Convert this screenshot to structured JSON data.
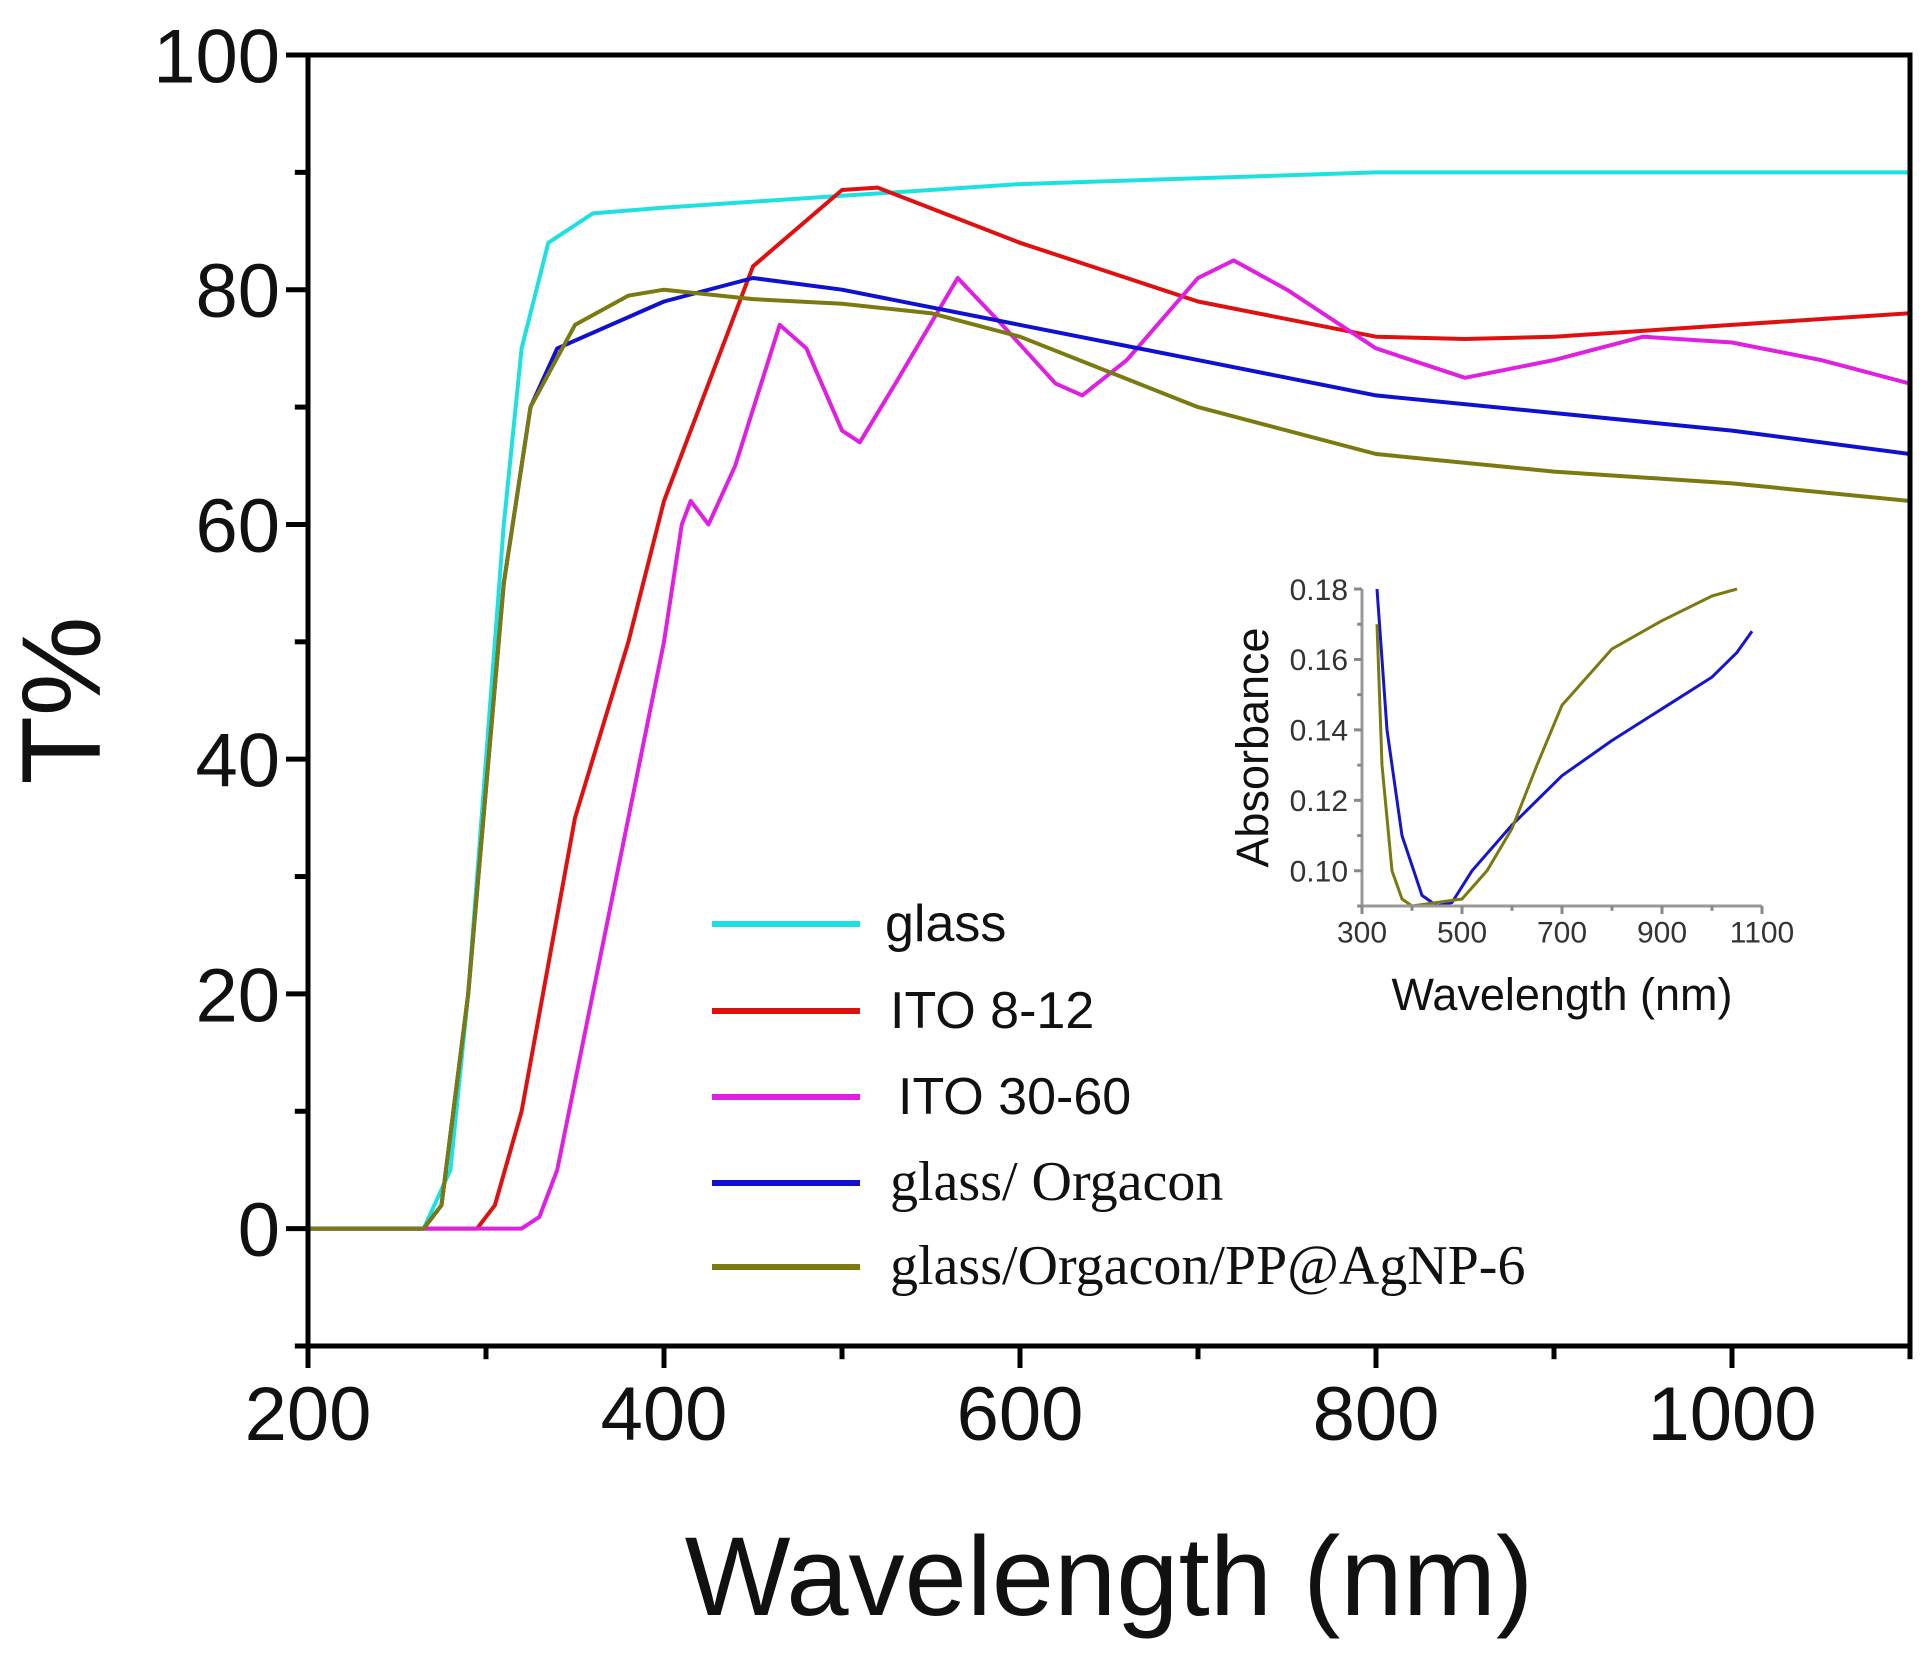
{
  "chart_data": [
    {
      "type": "line",
      "title": "",
      "xlabel": "Wavelength (nm)",
      "ylabel": "T%",
      "xlim": [
        200,
        1100
      ],
      "ylim": [
        -10,
        100
      ],
      "xticks": [
        "200",
        "400",
        "600",
        "800",
        "1000"
      ],
      "yticks": [
        "0",
        "20",
        "40",
        "60",
        "80",
        "100"
      ],
      "grid": false,
      "legend_position": "bottom-center",
      "series": [
        {
          "name": "glass",
          "color": "#1fe0e0",
          "x": [
            200,
            265,
            280,
            290,
            300,
            310,
            320,
            335,
            360,
            400,
            500,
            600,
            800,
            1000,
            1100
          ],
          "y": [
            0,
            0,
            5,
            20,
            40,
            60,
            75,
            84,
            86.5,
            87,
            88,
            89,
            90,
            90,
            90
          ]
        },
        {
          "name": "ITO 8-12",
          "color": "#e01010",
          "x": [
            200,
            295,
            305,
            320,
            350,
            380,
            400,
            450,
            500,
            520,
            600,
            700,
            800,
            850,
            900,
            1000,
            1100
          ],
          "y": [
            0,
            0,
            2,
            10,
            35,
            50,
            62,
            82,
            88.5,
            88.7,
            84,
            79,
            76,
            75.8,
            76,
            77,
            78
          ]
        },
        {
          "name": "ITO 30-60",
          "color": "#e020e0",
          "x": [
            200,
            320,
            330,
            340,
            360,
            380,
            400,
            410,
            415,
            425,
            440,
            465,
            480,
            500,
            510,
            530,
            565,
            590,
            620,
            635,
            660,
            700,
            720,
            750,
            800,
            850,
            900,
            950,
            1000,
            1050,
            1100
          ],
          "y": [
            0,
            0,
            1,
            5,
            20,
            35,
            50,
            60,
            62,
            60,
            65,
            77,
            75,
            68,
            67,
            72,
            81,
            77,
            72,
            71,
            74,
            81,
            82.5,
            80,
            75,
            72.5,
            74,
            76,
            75.5,
            74,
            72
          ]
        },
        {
          "name": "glass/ Orgacon",
          "color": "#1010d0",
          "x": [
            200,
            265,
            275,
            290,
            310,
            325,
            340,
            370,
            400,
            450,
            500,
            600,
            700,
            800,
            900,
            1000,
            1100
          ],
          "y": [
            0,
            0,
            2,
            20,
            55,
            70,
            75,
            77,
            79,
            81,
            80,
            77,
            74,
            71,
            69.5,
            68,
            66
          ]
        },
        {
          "name": "glass/Orgacon/PP@AgNP-6",
          "color": "#7a7a10",
          "x": [
            200,
            265,
            275,
            290,
            310,
            325,
            350,
            380,
            400,
            450,
            500,
            550,
            600,
            700,
            800,
            900,
            1000,
            1100
          ],
          "y": [
            0,
            0,
            2,
            20,
            55,
            70,
            77,
            79.5,
            80,
            79.2,
            78.8,
            78,
            76,
            70,
            66,
            64.5,
            63.5,
            62
          ]
        }
      ]
    },
    {
      "type": "line",
      "title": "",
      "xlabel": "Wavelength (nm)",
      "ylabel": "Absorbance",
      "xlim": [
        300,
        1100
      ],
      "ylim": [
        0.09,
        0.18
      ],
      "xticks": [
        "300",
        "500",
        "700",
        "900",
        "1100"
      ],
      "yticks": [
        "0.10",
        "0.12",
        "0.14",
        "0.16",
        "0.18"
      ],
      "grid": false,
      "series": [
        {
          "color": "#1515d0",
          "x": [
            330,
            350,
            380,
            420,
            450,
            480,
            520,
            600,
            700,
            800,
            900,
            1000,
            1050,
            1080
          ],
          "y": [
            0.18,
            0.14,
            0.11,
            0.093,
            0.09,
            0.091,
            0.1,
            0.113,
            0.127,
            0.137,
            0.146,
            0.155,
            0.162,
            0.168
          ]
        },
        {
          "color": "#7a7a10",
          "x": [
            330,
            340,
            360,
            380,
            400,
            450,
            500,
            550,
            600,
            650,
            700,
            800,
            900,
            1000,
            1050
          ],
          "y": [
            0.17,
            0.13,
            0.1,
            0.092,
            0.09,
            0.091,
            0.092,
            0.1,
            0.112,
            0.13,
            0.147,
            0.163,
            0.171,
            0.178,
            0.18
          ]
        }
      ]
    }
  ]
}
